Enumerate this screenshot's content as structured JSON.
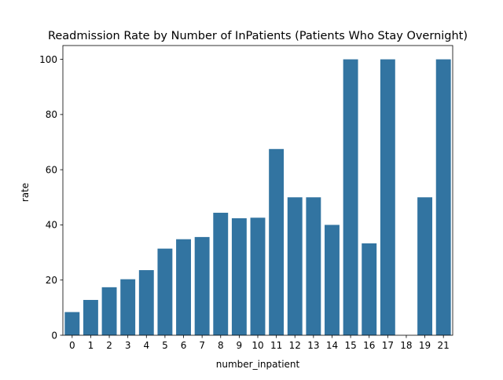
{
  "chart_data": {
    "type": "bar",
    "title": "Readmission Rate by Number of InPatients (Patients Who Stay Overnight)",
    "xlabel": "number_inpatient",
    "ylabel": "rate",
    "categories": [
      "0",
      "1",
      "2",
      "3",
      "4",
      "5",
      "6",
      "7",
      "8",
      "9",
      "10",
      "11",
      "12",
      "13",
      "14",
      "15",
      "16",
      "17",
      "18",
      "19",
      "21"
    ],
    "values": [
      8.4,
      12.8,
      17.4,
      20.3,
      23.6,
      31.4,
      34.8,
      35.6,
      44.4,
      42.4,
      42.6,
      67.5,
      50.0,
      50.0,
      40.0,
      100.0,
      33.3,
      100.0,
      0.0,
      50.0,
      100.0
    ],
    "ylim": [
      0,
      105
    ],
    "yticks": [
      "0",
      "20",
      "40",
      "60",
      "80",
      "100"
    ],
    "grid": false,
    "legend": "none",
    "colors": {
      "bar": "#3274a1",
      "axis": "#000000",
      "background": "#ffffff"
    }
  }
}
